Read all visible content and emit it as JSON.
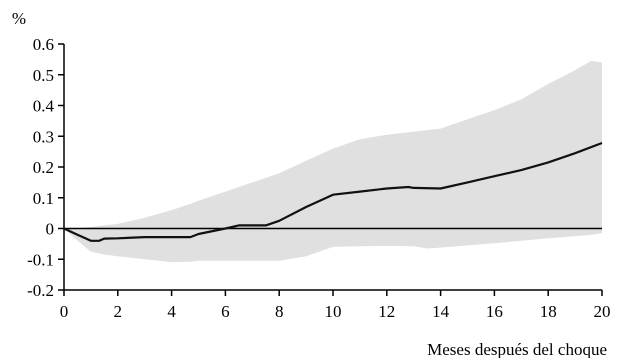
{
  "chart_data": {
    "type": "area",
    "xlabel": "Meses después del choque",
    "ylabel": "%",
    "xlim": [
      0,
      20
    ],
    "ylim": [
      -0.2,
      0.6
    ],
    "xticks": [
      0,
      2,
      4,
      6,
      8,
      10,
      12,
      14,
      16,
      18,
      20
    ],
    "yticks": [
      0.6,
      0.5,
      0.4,
      0.3,
      0.2,
      0.1,
      0,
      -0.1,
      -0.2
    ],
    "ytick_labels": [
      "0.6",
      "0.5",
      "0.4",
      "0.3",
      "0.2",
      "0.1",
      "0",
      "-0.1",
      "-0.2"
    ],
    "grid": false,
    "band_color": "#e0e0e0",
    "line_color": "#111111",
    "band": {
      "x": [
        0,
        0.5,
        1,
        1.5,
        2,
        3,
        4,
        4.7,
        5,
        6,
        7,
        8,
        9,
        10,
        11,
        12,
        13,
        13.5,
        14,
        15,
        16,
        17,
        18,
        19,
        19.6,
        20
      ],
      "upper": [
        0,
        0.002,
        0.005,
        0.01,
        0.015,
        0.035,
        0.06,
        0.08,
        0.09,
        0.12,
        0.15,
        0.18,
        0.22,
        0.26,
        0.29,
        0.305,
        0.315,
        0.32,
        0.325,
        0.355,
        0.385,
        0.42,
        0.47,
        0.515,
        0.545,
        0.54
      ],
      "lower": [
        0,
        -0.04,
        -0.075,
        -0.085,
        -0.09,
        -0.1,
        -0.11,
        -0.108,
        -0.105,
        -0.105,
        -0.105,
        -0.105,
        -0.09,
        -0.06,
        -0.058,
        -0.057,
        -0.058,
        -0.065,
        -0.062,
        -0.055,
        -0.048,
        -0.04,
        -0.032,
        -0.025,
        -0.02,
        -0.015
      ]
    },
    "series": [
      {
        "x": [
          0,
          0.5,
          1,
          1.3,
          1.5,
          2,
          3,
          4,
          4.7,
          5,
          6,
          6.5,
          7,
          7.5,
          8,
          9,
          10,
          11,
          12,
          12.8,
          13,
          14,
          15,
          16,
          17,
          18,
          19,
          20
        ],
        "values": [
          0,
          -0.02,
          -0.04,
          -0.04,
          -0.033,
          -0.032,
          -0.028,
          -0.028,
          -0.028,
          -0.018,
          0.0,
          0.01,
          0.01,
          0.01,
          0.025,
          0.07,
          0.11,
          0.12,
          0.13,
          0.135,
          0.132,
          0.13,
          0.15,
          0.17,
          0.19,
          0.215,
          0.245,
          0.278
        ]
      }
    ]
  }
}
